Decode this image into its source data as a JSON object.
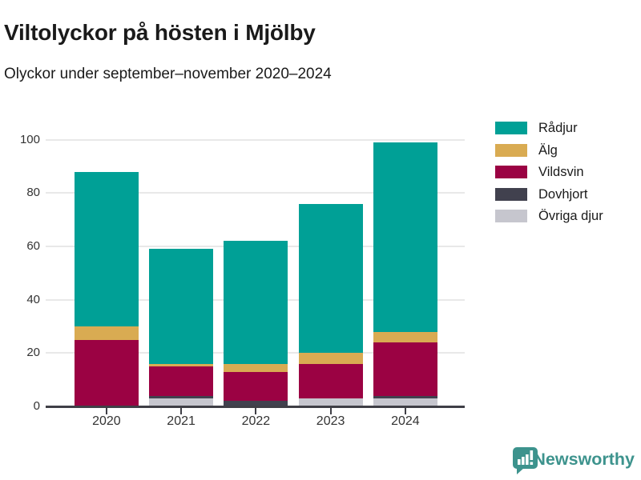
{
  "header": {
    "title": "Viltolyckor på hösten i Mjölby",
    "subtitle": "Olyckor under september–november 2020–2024"
  },
  "chart_data": {
    "type": "bar",
    "stacked": true,
    "title": "Viltolyckor på hösten i Mjölby",
    "subtitle": "Olyckor under september–november 2020–2024",
    "categories": [
      "2020",
      "2021",
      "2022",
      "2023",
      "2024"
    ],
    "series": [
      {
        "name": "Rådjur",
        "slug": "radjur",
        "color": "#00a096",
        "values": [
          58,
          43,
          46,
          56,
          71
        ]
      },
      {
        "name": "Älg",
        "slug": "alg",
        "color": "#d9ab52",
        "values": [
          5,
          1,
          3,
          4,
          4
        ]
      },
      {
        "name": "Vildsvin",
        "slug": "vildsvin",
        "color": "#9b0243",
        "values": [
          25,
          11,
          11,
          13,
          20
        ]
      },
      {
        "name": "Dovhjort",
        "slug": "dovhjort",
        "color": "#41414e",
        "values": [
          0,
          1,
          2,
          0,
          1
        ]
      },
      {
        "name": "Övriga djur",
        "slug": "ovriga-djur",
        "color": "#c6c6ce",
        "values": [
          0,
          3,
          0,
          3,
          3
        ]
      }
    ],
    "yticks": [
      0,
      20,
      40,
      60,
      80,
      100
    ],
    "ylim": [
      0,
      100
    ],
    "xlabel": "",
    "ylabel": "",
    "grid": "horizontal",
    "legend_position": "right"
  },
  "colors": {
    "axis": "#3f3f46",
    "gridline": "#e8e8e8",
    "tick_text": "#333333",
    "text": "#1a1a1a",
    "brand": "#3d938d"
  },
  "footer": {
    "brand": "Newsworthy"
  }
}
